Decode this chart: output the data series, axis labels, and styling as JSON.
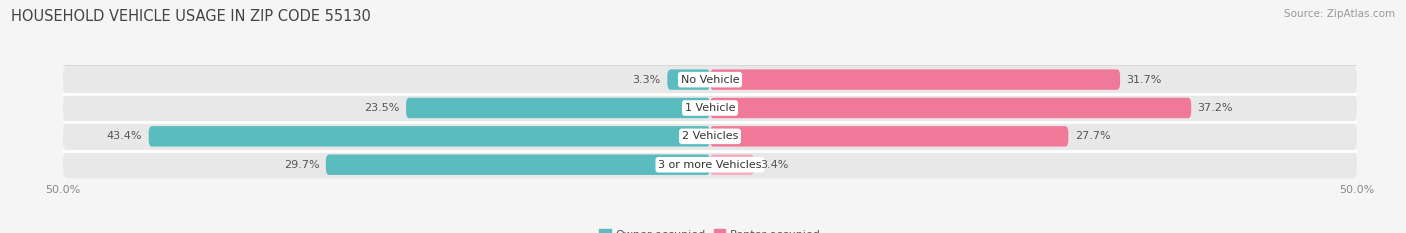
{
  "title": "HOUSEHOLD VEHICLE USAGE IN ZIP CODE 55130",
  "source": "Source: ZipAtlas.com",
  "categories": [
    "No Vehicle",
    "1 Vehicle",
    "2 Vehicles",
    "3 or more Vehicles"
  ],
  "owner_values": [
    3.3,
    23.5,
    43.4,
    29.7
  ],
  "renter_values": [
    31.7,
    37.2,
    27.7,
    3.4
  ],
  "owner_color": "#5bbcbf",
  "renter_color": "#f07898",
  "renter_color_light": "#f5aec0",
  "bar_bg_color": "#e8e8e8",
  "row_sep_color": "#ffffff",
  "axis_limit": 50.0,
  "title_fontsize": 10.5,
  "source_fontsize": 7.5,
  "label_fontsize": 8,
  "cat_fontsize": 8,
  "tick_fontsize": 8,
  "legend_fontsize": 8,
  "bar_height": 0.72,
  "background_color": "#f5f5f5"
}
